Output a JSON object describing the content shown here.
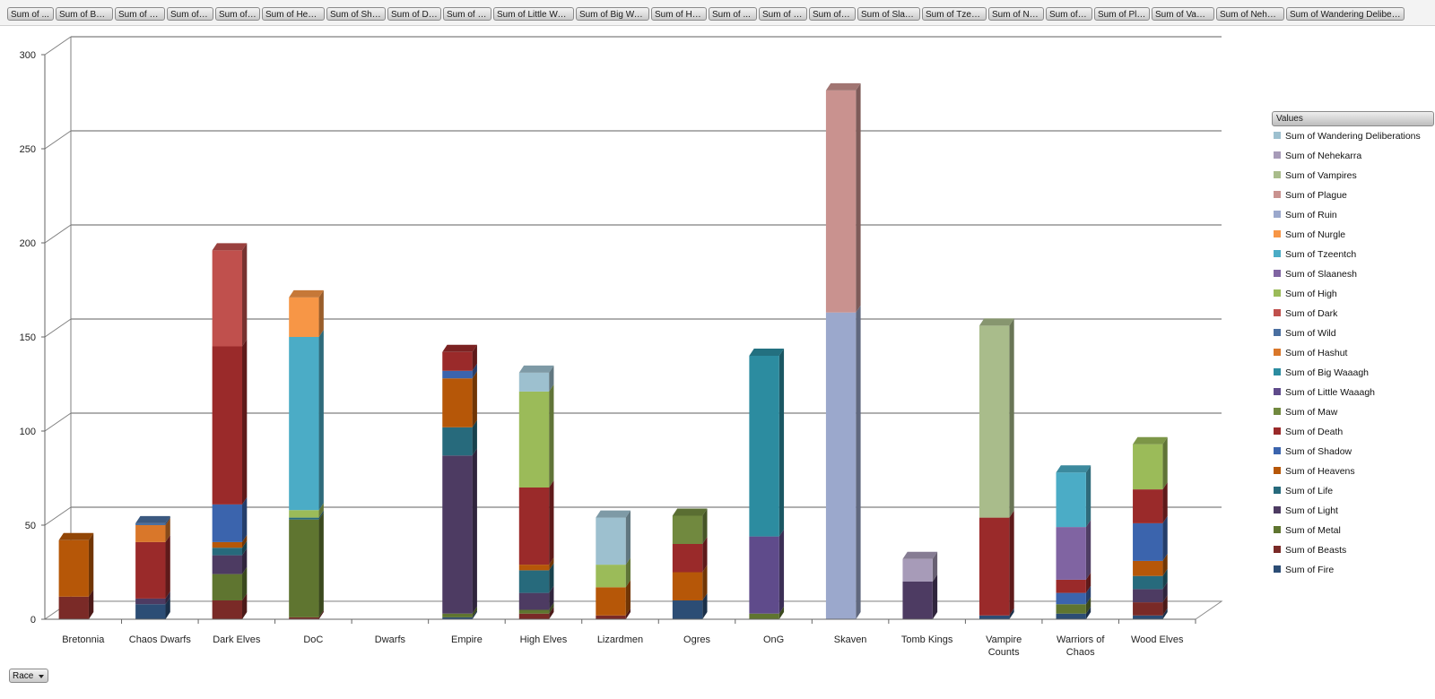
{
  "filter_buttons": [
    "Sum of ...",
    "Sum of Bea...",
    "Sum of M...",
    "Sum of Li...",
    "Sum of ...",
    "Sum of Heav...",
    "Sum of Sha...",
    "Sum of De...",
    "Sum of M...",
    "Sum of Little Waa...",
    "Sum of Big Waa...",
    "Sum of Has...",
    "Sum of ...",
    "Sum of D...",
    "Sum of H...",
    "Sum of Slaan...",
    "Sum of Tzeen...",
    "Sum of Nur...",
    "Sum of R...",
    "Sum of Pla...",
    "Sum of Vampi...",
    "Sum of Nehek...",
    "Sum of Wandering Delibera..."
  ],
  "axis_button": {
    "label": "Race"
  },
  "legend_title": "Values",
  "chart_data": {
    "type": "bar",
    "stacked": true,
    "three_d": true,
    "yticks": [
      0,
      50,
      100,
      150,
      200,
      250,
      300
    ],
    "ylim": [
      0,
      300
    ],
    "grid": true,
    "legend_position": "right",
    "categories": [
      "Bretonnia",
      "Chaos Dwarfs",
      "Dark Elves",
      "DoC",
      "Dwarfs",
      "Empire",
      "High Elves",
      "Lizardmen",
      "Ogres",
      "OnG",
      "Skaven",
      "Tomb Kings",
      "Vampire Counts",
      "Warriors of Chaos",
      "Wood Elves"
    ],
    "series": [
      {
        "name": "Sum of Fire",
        "color": "#2c4d75",
        "values": [
          0,
          8,
          0,
          0,
          0,
          1,
          0,
          0,
          10,
          0,
          0,
          0,
          2,
          3,
          2
        ]
      },
      {
        "name": "Sum of Beasts",
        "color": "#7a2a27",
        "values": [
          12,
          0,
          10,
          1,
          0,
          0,
          3,
          2,
          0,
          0,
          0,
          0,
          0,
          0,
          7
        ]
      },
      {
        "name": "Sum of Metal",
        "color": "#5f7530",
        "values": [
          0,
          0,
          14,
          52,
          0,
          2,
          2,
          0,
          0,
          3,
          0,
          0,
          0,
          5,
          0
        ]
      },
      {
        "name": "Sum of Light",
        "color": "#4d3b62",
        "values": [
          0,
          3,
          10,
          0,
          0,
          84,
          9,
          0,
          0,
          0,
          0,
          20,
          0,
          0,
          7
        ]
      },
      {
        "name": "Sum of Life",
        "color": "#276a7c",
        "values": [
          0,
          0,
          4,
          1,
          0,
          15,
          12,
          0,
          0,
          0,
          0,
          0,
          0,
          0,
          7
        ]
      },
      {
        "name": "Sum of Heavens",
        "color": "#b65708",
        "values": [
          30,
          0,
          3,
          0,
          0,
          26,
          3,
          15,
          15,
          0,
          0,
          0,
          0,
          0,
          8
        ]
      },
      {
        "name": "Sum of Shadow",
        "color": "#3b64ad",
        "values": [
          0,
          0,
          20,
          0,
          0,
          4,
          0,
          0,
          0,
          0,
          0,
          0,
          0,
          6,
          20
        ]
      },
      {
        "name": "Sum of Death",
        "color": "#9a2a2a",
        "values": [
          0,
          30,
          84,
          0,
          0,
          10,
          41,
          0,
          15,
          0,
          0,
          0,
          52,
          7,
          18
        ]
      },
      {
        "name": "Sum of Maw",
        "color": "#71893f",
        "values": [
          0,
          0,
          0,
          0,
          0,
          0,
          0,
          0,
          15,
          0,
          0,
          0,
          0,
          0,
          0
        ]
      },
      {
        "name": "Sum of Little Waaagh",
        "color": "#5f4b8b",
        "values": [
          0,
          0,
          0,
          0,
          0,
          0,
          0,
          0,
          0,
          41,
          0,
          0,
          0,
          0,
          0
        ]
      },
      {
        "name": "Sum of Big Waaagh",
        "color": "#2c8ca0",
        "values": [
          0,
          0,
          0,
          0,
          0,
          0,
          0,
          0,
          0,
          96,
          0,
          0,
          0,
          0,
          0
        ]
      },
      {
        "name": "Sum of Hashut",
        "color": "#d9772a",
        "values": [
          0,
          9,
          0,
          0,
          0,
          0,
          0,
          0,
          0,
          0,
          0,
          0,
          0,
          0,
          0
        ]
      },
      {
        "name": "Sum of Wild",
        "color": "#4a6fa0",
        "values": [
          0,
          1,
          0,
          0,
          0,
          0,
          0,
          0,
          0,
          0,
          0,
          0,
          0,
          0,
          0
        ]
      },
      {
        "name": "Sum of Dark",
        "color": "#c0504d",
        "values": [
          0,
          0,
          51,
          0,
          0,
          0,
          0,
          0,
          0,
          0,
          0,
          0,
          0,
          0,
          0
        ]
      },
      {
        "name": "Sum of High",
        "color": "#9bbb59",
        "values": [
          0,
          0,
          0,
          4,
          0,
          0,
          51,
          12,
          0,
          0,
          0,
          0,
          0,
          0,
          24
        ]
      },
      {
        "name": "Sum of Slaanesh",
        "color": "#8064a2",
        "values": [
          0,
          0,
          0,
          0,
          0,
          0,
          0,
          0,
          0,
          0,
          0,
          0,
          0,
          28,
          0
        ]
      },
      {
        "name": "Sum of Tzeentch",
        "color": "#4bacc6",
        "values": [
          0,
          0,
          0,
          92,
          0,
          0,
          0,
          0,
          0,
          0,
          0,
          0,
          0,
          29,
          0
        ]
      },
      {
        "name": "Sum of Nurgle",
        "color": "#f79646",
        "values": [
          0,
          0,
          0,
          21,
          0,
          0,
          0,
          0,
          0,
          0,
          0,
          0,
          0,
          0,
          0
        ]
      },
      {
        "name": "Sum of Ruin",
        "color": "#9ba8cc",
        "values": [
          0,
          0,
          0,
          0,
          0,
          0,
          0,
          0,
          0,
          0,
          163,
          0,
          0,
          0,
          0
        ]
      },
      {
        "name": "Sum of Plague",
        "color": "#c9928f",
        "values": [
          0,
          0,
          0,
          0,
          0,
          0,
          0,
          0,
          0,
          0,
          118,
          0,
          0,
          0,
          0
        ]
      },
      {
        "name": "Sum of Vampires",
        "color": "#a9bc8b",
        "values": [
          0,
          0,
          0,
          0,
          0,
          0,
          0,
          0,
          0,
          0,
          0,
          0,
          102,
          0,
          0
        ]
      },
      {
        "name": "Sum of Nehekarra",
        "color": "#a79bb8",
        "values": [
          0,
          0,
          0,
          0,
          0,
          0,
          0,
          0,
          0,
          0,
          0,
          12,
          0,
          0,
          0
        ]
      },
      {
        "name": "Sum of Wandering Deliberations",
        "color": "#9dc0cf",
        "values": [
          0,
          0,
          0,
          0,
          0,
          0,
          10,
          25,
          0,
          0,
          0,
          0,
          0,
          0,
          0
        ]
      }
    ]
  }
}
